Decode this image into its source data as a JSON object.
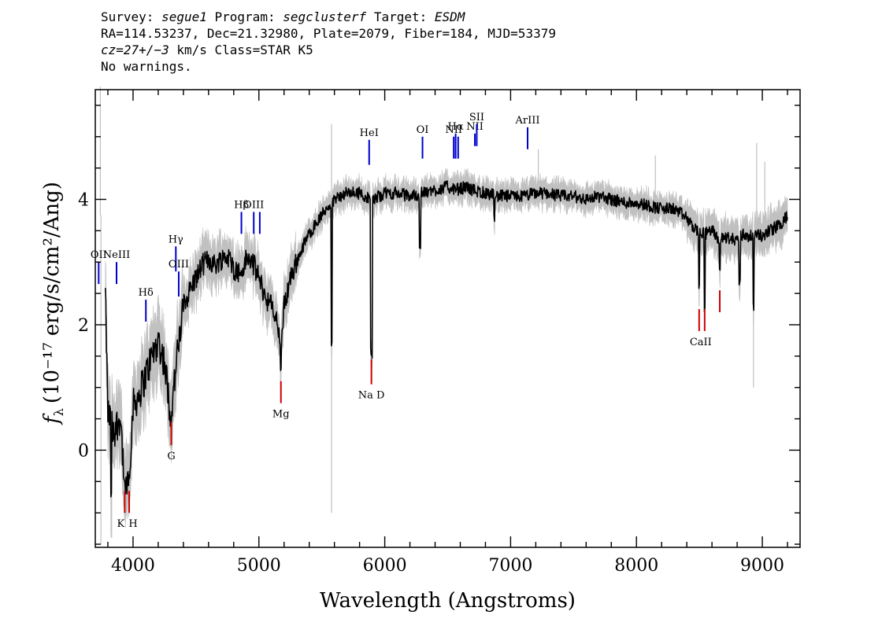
{
  "header": {
    "survey_label": "Survey:",
    "survey_value": "segue1",
    "program_label": "Program:",
    "program_value": "segclusterf",
    "target_label": "Target:",
    "target_value": "ESDM",
    "line2": "RA=114.53237, Dec=21.32980, Plate=2079, Fiber=184, MJD=53379",
    "cz_value": "cz=27+/−3",
    "cz_unit_class": " km/s Class=STAR K5",
    "warnings": "No warnings."
  },
  "chart_data": {
    "type": "line",
    "xlabel": "Wavelength (Angstroms)",
    "ylabel_prefix": "f",
    "ylabel_sub": "λ",
    "ylabel_units": "(10⁻¹⁷ erg/s/cm²/Ang)",
    "xlim": [
      3700,
      9300
    ],
    "ylim": [
      -1.55,
      5.75
    ],
    "x_ticks": [
      4000,
      5000,
      6000,
      7000,
      8000,
      9000
    ],
    "y_ticks": [
      0,
      2,
      4
    ],
    "colors": {
      "flux": "#000000",
      "error_band": "#c0c0c0",
      "emission_marker": "#0000cc",
      "absorption_marker": "#cc0000"
    },
    "continuum": [
      [
        3780,
        2.5
      ],
      [
        3800,
        0.6
      ],
      [
        3850,
        0.3
      ],
      [
        3900,
        0.55
      ],
      [
        3933,
        -0.6
      ],
      [
        3968,
        -0.4
      ],
      [
        4000,
        0.7
      ],
      [
        4050,
        0.9
      ],
      [
        4102,
        1.2
      ],
      [
        4150,
        1.5
      ],
      [
        4200,
        1.75
      ],
      [
        4250,
        1.4
      ],
      [
        4300,
        0.55
      ],
      [
        4340,
        1.3
      ],
      [
        4400,
        2.3
      ],
      [
        4450,
        2.55
      ],
      [
        4500,
        2.75
      ],
      [
        4550,
        2.95
      ],
      [
        4600,
        3.05
      ],
      [
        4650,
        2.95
      ],
      [
        4700,
        3.05
      ],
      [
        4750,
        3.1
      ],
      [
        4800,
        2.9
      ],
      [
        4861,
        2.8
      ],
      [
        4900,
        3.05
      ],
      [
        4950,
        3.0
      ],
      [
        5000,
        2.75
      ],
      [
        5050,
        2.45
      ],
      [
        5100,
        2.3
      ],
      [
        5150,
        2.0
      ],
      [
        5175,
        1.55
      ],
      [
        5200,
        2.3
      ],
      [
        5250,
        2.75
      ],
      [
        5300,
        3.0
      ],
      [
        5350,
        3.25
      ],
      [
        5400,
        3.45
      ],
      [
        5450,
        3.6
      ],
      [
        5500,
        3.75
      ],
      [
        5550,
        3.9
      ],
      [
        5600,
        4.0
      ],
      [
        5650,
        4.05
      ],
      [
        5700,
        4.1
      ],
      [
        5750,
        4.1
      ],
      [
        5800,
        4.1
      ],
      [
        5850,
        4.05
      ],
      [
        5895,
        3.95
      ],
      [
        5950,
        4.05
      ],
      [
        6000,
        4.1
      ],
      [
        6100,
        4.1
      ],
      [
        6200,
        4.05
      ],
      [
        6300,
        4.1
      ],
      [
        6400,
        4.15
      ],
      [
        6500,
        4.2
      ],
      [
        6563,
        4.15
      ],
      [
        6650,
        4.2
      ],
      [
        6700,
        4.15
      ],
      [
        6800,
        4.1
      ],
      [
        6900,
        4.05
      ],
      [
        7000,
        4.05
      ],
      [
        7100,
        4.05
      ],
      [
        7200,
        4.1
      ],
      [
        7300,
        4.1
      ],
      [
        7400,
        4.05
      ],
      [
        7500,
        4.05
      ],
      [
        7600,
        4.0
      ],
      [
        7700,
        4.05
      ],
      [
        7800,
        4.0
      ],
      [
        7900,
        3.95
      ],
      [
        8000,
        3.95
      ],
      [
        8100,
        3.9
      ],
      [
        8200,
        3.85
      ],
      [
        8300,
        3.85
      ],
      [
        8400,
        3.7
      ],
      [
        8450,
        3.55
      ],
      [
        8498,
        3.5
      ],
      [
        8542,
        3.45
      ],
      [
        8600,
        3.5
      ],
      [
        8662,
        3.35
      ],
      [
        8700,
        3.4
      ],
      [
        8800,
        3.35
      ],
      [
        8850,
        3.45
      ],
      [
        8900,
        3.4
      ],
      [
        8950,
        3.45
      ],
      [
        9000,
        3.4
      ],
      [
        9050,
        3.5
      ],
      [
        9100,
        3.55
      ],
      [
        9150,
        3.6
      ],
      [
        9200,
        3.75
      ]
    ],
    "absorption_dips": [
      [
        3825,
        -0.8
      ],
      [
        3933,
        -0.6
      ],
      [
        3968,
        -0.5
      ],
      [
        4300,
        0.4
      ],
      [
        5175,
        1.25
      ],
      [
        5577,
        1.6
      ],
      [
        5890,
        1.5
      ],
      [
        5896,
        1.45
      ],
      [
        6280,
        3.15
      ],
      [
        6870,
        3.6
      ],
      [
        8498,
        2.5
      ],
      [
        8542,
        2.2
      ],
      [
        8662,
        2.75
      ],
      [
        8820,
        2.6
      ],
      [
        8930,
        2.2
      ]
    ],
    "noise_spikes": [
      [
        3740,
        5.8
      ],
      [
        3745,
        -1.5
      ],
      [
        3830,
        -1.4
      ],
      [
        5577,
        -1.0
      ],
      [
        5577,
        5.2
      ],
      [
        8150,
        4.7
      ],
      [
        7220,
        4.8
      ],
      [
        8930,
        1.0
      ],
      [
        8955,
        4.9
      ],
      [
        9020,
        4.6
      ]
    ],
    "emission_lines": [
      {
        "label": "OII",
        "x": 3727,
        "y0": 2.65,
        "y1": 3.0
      },
      {
        "label": "NeIII",
        "x": 3869,
        "y0": 2.65,
        "y1": 3.0
      },
      {
        "label": "Hδ",
        "x": 4102,
        "y0": 2.05,
        "y1": 2.4
      },
      {
        "label": "Hγ",
        "x": 4340,
        "y0": 2.85,
        "y1": 3.25
      },
      {
        "label": "OIII",
        "x": 4363,
        "y0": 2.45,
        "y1": 2.85
      },
      {
        "label": "Hβ",
        "x": 4861,
        "y0": 3.45,
        "y1": 3.8
      },
      {
        "label": "OIII",
        "x": 4959,
        "y0": 3.45,
        "y1": 3.8
      },
      {
        "label": "",
        "x": 5007,
        "y0": 3.45,
        "y1": 3.8
      },
      {
        "label": "HeI",
        "x": 5876,
        "y0": 4.55,
        "y1": 4.95
      },
      {
        "label": "OI",
        "x": 6300,
        "y0": 4.65,
        "y1": 5.0
      },
      {
        "label": "NII",
        "x": 6548,
        "y0": 4.65,
        "y1": 5.0
      },
      {
        "label": "Hα",
        "x": 6563,
        "y0": 4.65,
        "y1": 5.05
      },
      {
        "label": "",
        "x": 6583,
        "y0": 4.65,
        "y1": 5.0
      },
      {
        "label": "NII",
        "x": 6716,
        "y0": 4.85,
        "y1": 5.05
      },
      {
        "label": "SII",
        "x": 6731,
        "y0": 4.85,
        "y1": 5.2
      },
      {
        "label": "ArIII",
        "x": 7135,
        "y0": 4.8,
        "y1": 5.15
      }
    ],
    "absorption_lines": [
      {
        "label": "K",
        "x": 3934,
        "y0": -1.0,
        "y1": -0.65
      },
      {
        "label": "H",
        "x": 3969,
        "y0": -1.0,
        "y1": -0.65
      },
      {
        "label": "G",
        "x": 4304,
        "y0": 0.08,
        "y1": 0.45
      },
      {
        "label": "Mg",
        "x": 5175,
        "y0": 0.75,
        "y1": 1.1
      },
      {
        "label": "Na D",
        "x": 5894,
        "y0": 1.05,
        "y1": 1.45
      },
      {
        "label": "CaII",
        "x": 8498,
        "y0": 1.9,
        "y1": 2.25
      },
      {
        "label": "",
        "x": 8542,
        "y0": 1.9,
        "y1": 2.25
      },
      {
        "label": "",
        "x": 8662,
        "y0": 2.2,
        "y1": 2.55
      }
    ]
  }
}
